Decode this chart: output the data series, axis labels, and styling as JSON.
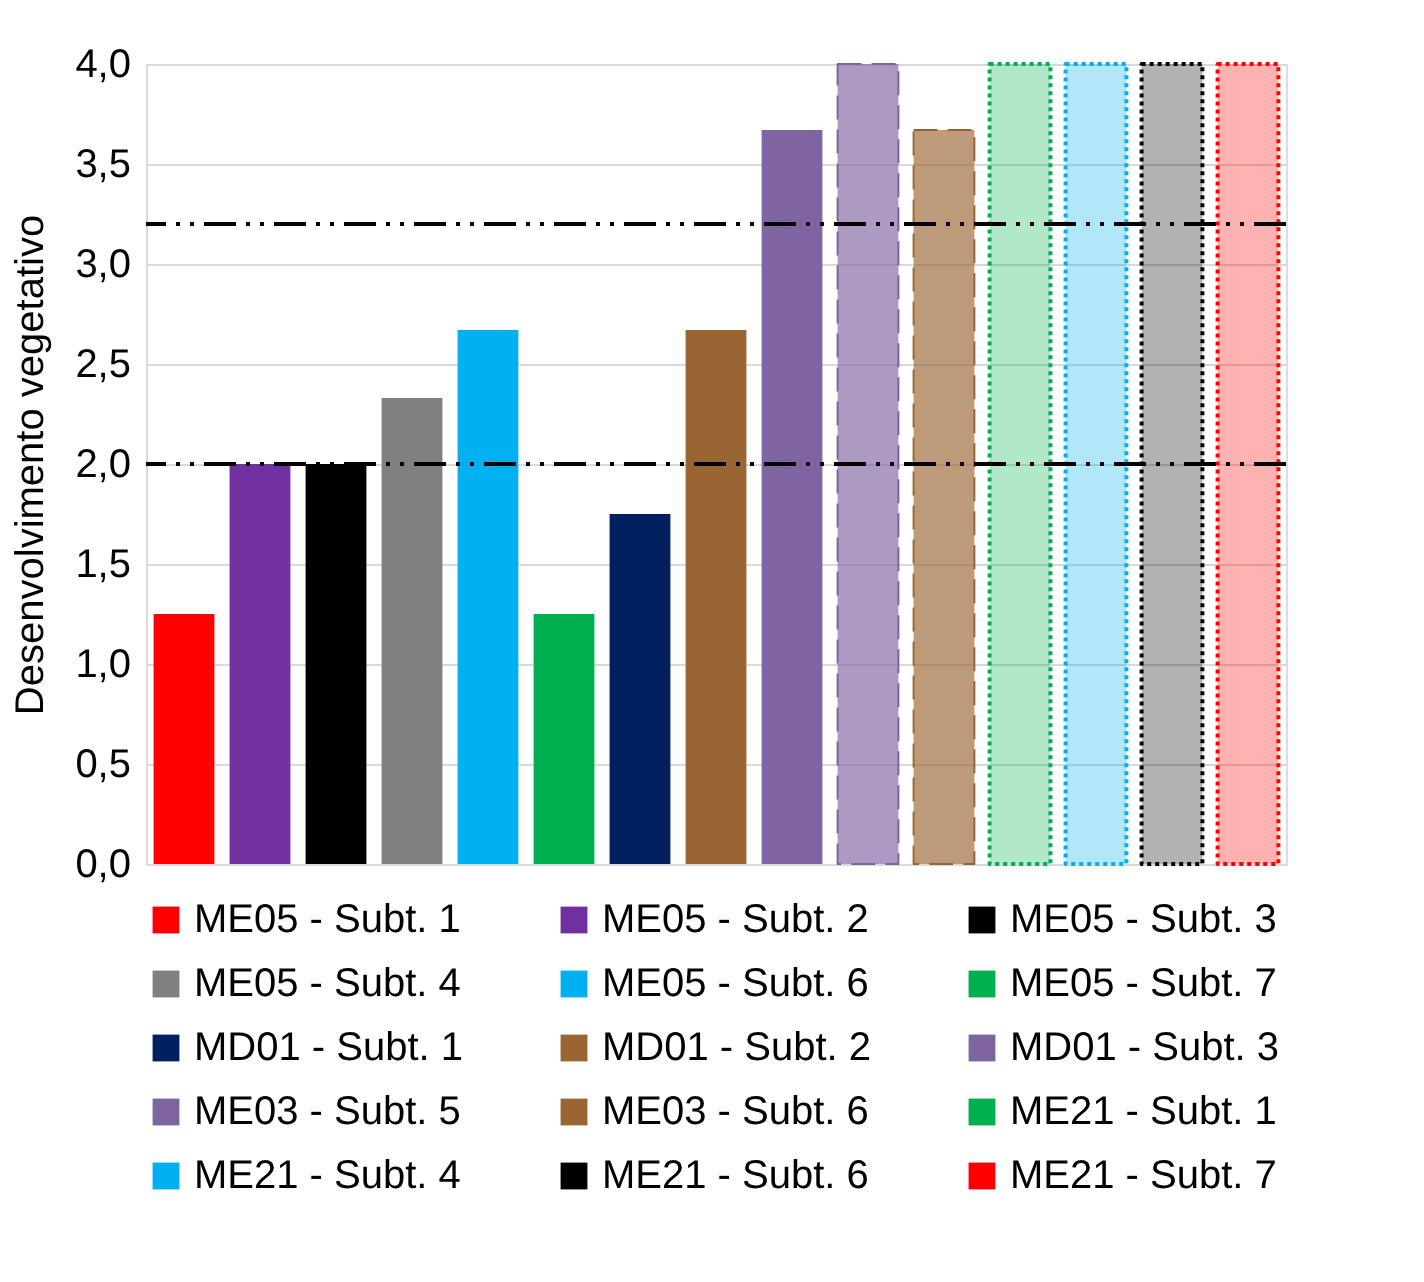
{
  "chart_data": {
    "type": "bar",
    "ylabel": "Desenvolvimento vegetativo",
    "categories": [
      null,
      null,
      null,
      null,
      null,
      null,
      null,
      null,
      null,
      null,
      null,
      null,
      null,
      null,
      null
    ],
    "series": [
      {
        "name": "ME05 - Subt. 1",
        "color": "#ff0000",
        "values": [
          1.25,
          null,
          null,
          null,
          null,
          null,
          null,
          null,
          null,
          null,
          null,
          null,
          null,
          null,
          null
        ]
      },
      {
        "name": "ME05 - Subt. 2",
        "color": "#7030a0",
        "values": [
          null,
          2.0,
          null,
          null,
          null,
          null,
          null,
          null,
          null,
          null,
          null,
          null,
          null,
          null,
          null
        ]
      },
      {
        "name": "ME05 - Subt. 3",
        "color": "#000000",
        "values": [
          null,
          null,
          2.0,
          null,
          null,
          null,
          null,
          null,
          null,
          null,
          null,
          null,
          null,
          null,
          null
        ]
      },
      {
        "name": "ME05 - Subt. 4",
        "color": "#808080",
        "values": [
          null,
          null,
          null,
          2.33,
          null,
          null,
          null,
          null,
          null,
          null,
          null,
          null,
          null,
          null,
          null
        ]
      },
      {
        "name": "ME05 - Subt. 6",
        "color": "#00b0f0",
        "values": [
          null,
          null,
          null,
          null,
          2.67,
          null,
          null,
          null,
          null,
          null,
          null,
          null,
          null,
          null,
          null
        ]
      },
      {
        "name": "ME05 - Subt. 7",
        "color": "#00b050",
        "values": [
          null,
          null,
          null,
          null,
          null,
          1.25,
          null,
          null,
          null,
          null,
          null,
          null,
          null,
          null,
          null
        ]
      },
      {
        "name": "MD01 - Subt. 1",
        "color": "#002060",
        "values": [
          null,
          null,
          null,
          null,
          null,
          null,
          1.75,
          null,
          null,
          null,
          null,
          null,
          null,
          null,
          null
        ]
      },
      {
        "name": "MD01 - Subt. 2",
        "color": "#996633",
        "values": [
          null,
          null,
          null,
          null,
          null,
          null,
          null,
          2.67,
          null,
          null,
          null,
          null,
          null,
          null,
          null
        ]
      },
      {
        "name": "MD01 - Subt. 3",
        "color": "#8064a2",
        "values": [
          null,
          null,
          null,
          null,
          null,
          null,
          null,
          null,
          3.67,
          null,
          null,
          null,
          null,
          null,
          null
        ]
      },
      {
        "name": "ME03 - Subt. 5",
        "color": "#8064a2",
        "line_style": "dashed",
        "values": [
          null,
          null,
          null,
          null,
          null,
          null,
          null,
          null,
          null,
          4.0,
          null,
          null,
          null,
          null,
          null
        ]
      },
      {
        "name": "ME03 - Subt. 6",
        "color": "#996633",
        "line_style": "dashed",
        "values": [
          null,
          null,
          null,
          null,
          null,
          null,
          null,
          null,
          null,
          null,
          3.67,
          null,
          null,
          null,
          null
        ]
      },
      {
        "name": "ME21 - Subt. 1",
        "color": "#00b050",
        "line_style": "dotted",
        "values": [
          null,
          null,
          null,
          null,
          null,
          null,
          null,
          null,
          null,
          null,
          null,
          4.0,
          null,
          null,
          null
        ]
      },
      {
        "name": "ME21 - Subt. 4",
        "color": "#00b0f0",
        "line_style": "dotted",
        "values": [
          null,
          null,
          null,
          null,
          null,
          null,
          null,
          null,
          null,
          null,
          null,
          null,
          4.0,
          null,
          null
        ]
      },
      {
        "name": "ME21 - Subt. 6",
        "color": "#000000",
        "line_style": "dotted",
        "values": [
          null,
          null,
          null,
          null,
          null,
          null,
          null,
          null,
          null,
          null,
          null,
          null,
          null,
          4.0,
          null
        ]
      },
      {
        "name": "ME21 - Subt. 7",
        "color": "#ff0000",
        "line_style": "dotted",
        "values": [
          null,
          null,
          null,
          null,
          null,
          null,
          null,
          null,
          null,
          null,
          null,
          null,
          null,
          null,
          4.0
        ]
      }
    ],
    "ylim": [
      0,
      4
    ],
    "yticks": [
      {
        "value": 0,
        "label": "0,0"
      },
      {
        "value": 0.5,
        "label": "0,5"
      },
      {
        "value": 1,
        "label": "1,0"
      },
      {
        "value": 1.5,
        "label": "1,5"
      },
      {
        "value": 2,
        "label": "2,0"
      },
      {
        "value": 2.5,
        "label": "2,5"
      },
      {
        "value": 3,
        "label": "3,0"
      },
      {
        "value": 3.5,
        "label": "3,5"
      },
      {
        "value": 4,
        "label": "4,0"
      }
    ],
    "ref_lines": [
      {
        "axis": "y",
        "value": 3.2,
        "color": "#000000",
        "line_style": "dashed"
      },
      {
        "axis": "y",
        "value": 2.0,
        "color": "#000000",
        "line_style": "dashed"
      }
    ],
    "grid": "y",
    "legend": "bottom",
    "tick_labels": "y"
  }
}
